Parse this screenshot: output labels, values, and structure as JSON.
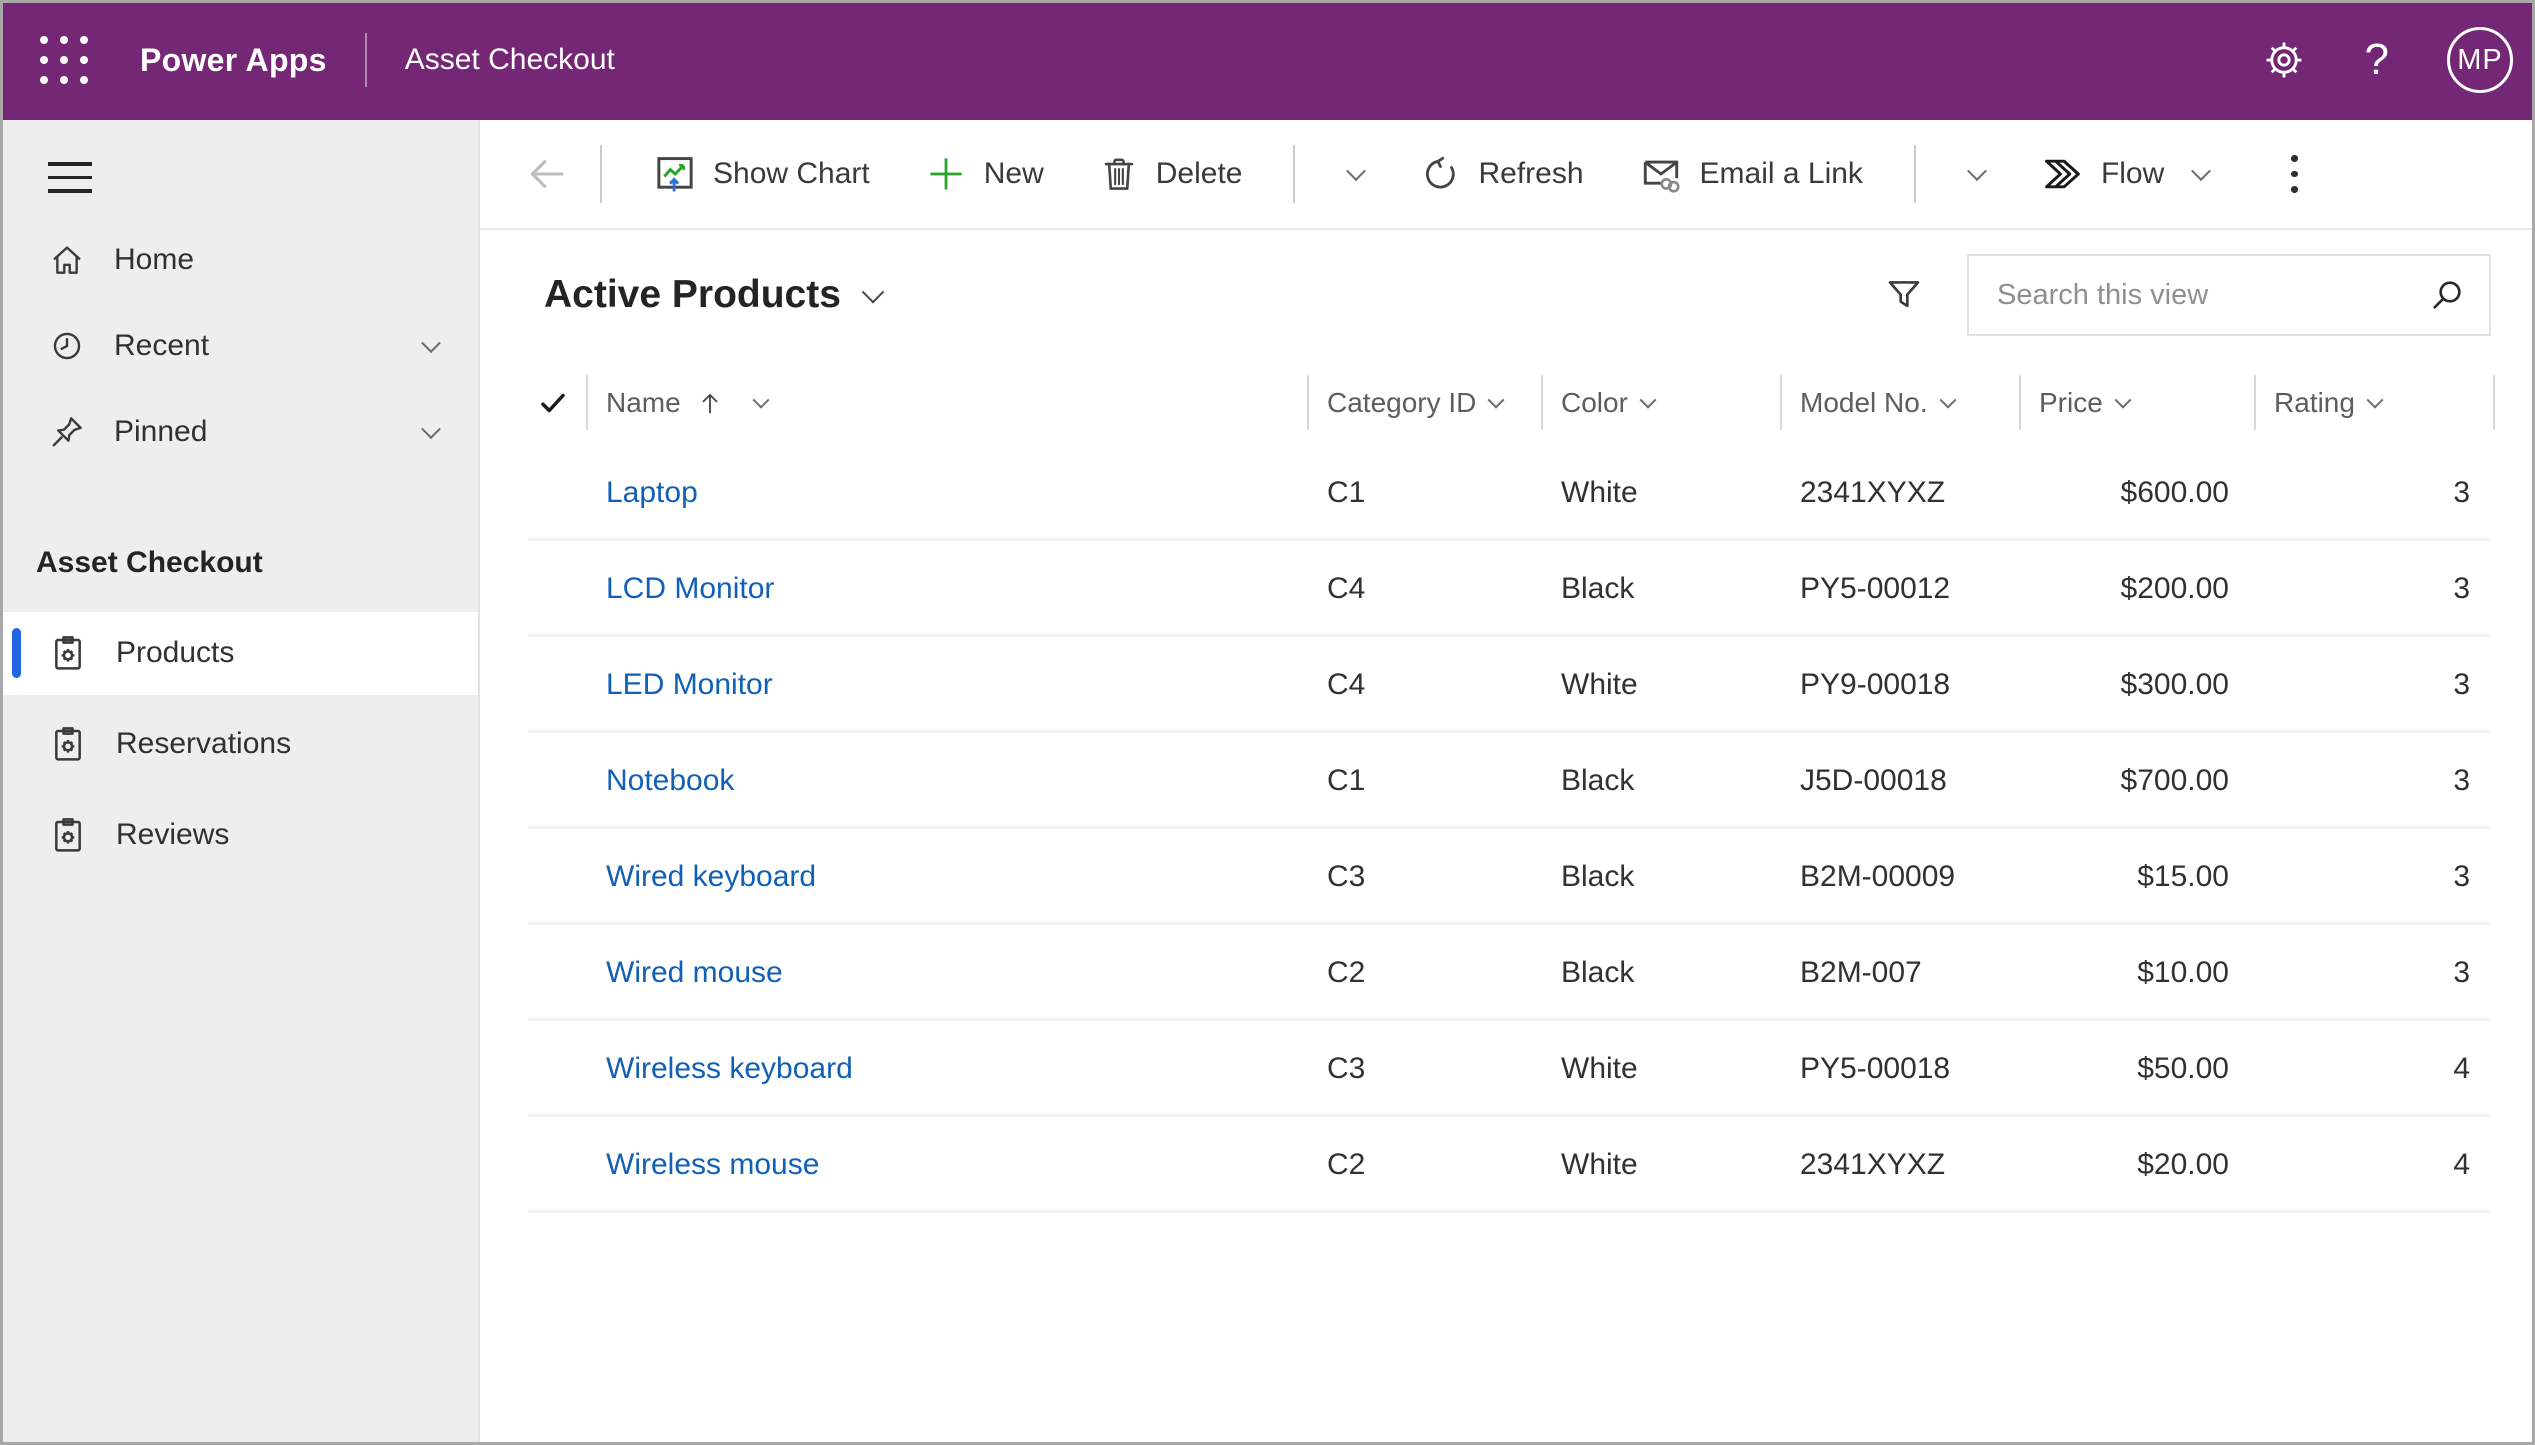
{
  "theme": {
    "header_purple": "#742774",
    "link_blue": "#1160B7",
    "selection_blue": "#2266E3",
    "accent_green": "#28A428",
    "chart_arrow_blue": "#2F6FD6",
    "sidebar_gray": "#EFEEEE"
  },
  "topbar": {
    "product_name": "Power Apps",
    "app_name": "Asset Checkout",
    "help_label": "?",
    "avatar_initials": "MP"
  },
  "sidebar": {
    "nav_items": [
      {
        "label": "Home",
        "expandable": false
      },
      {
        "label": "Recent",
        "expandable": true
      },
      {
        "label": "Pinned",
        "expandable": true
      }
    ],
    "group_label": "Asset Checkout",
    "entity_items": [
      {
        "label": "Products",
        "selected": true
      },
      {
        "label": "Reservations",
        "selected": false
      },
      {
        "label": "Reviews",
        "selected": false
      }
    ]
  },
  "toolbar": {
    "show_chart_label": "Show Chart",
    "new_label": "New",
    "delete_label": "Delete",
    "refresh_label": "Refresh",
    "email_link_label": "Email a Link",
    "flow_label": "Flow"
  },
  "view": {
    "title": "Active Products",
    "search_placeholder": "Search this view"
  },
  "table": {
    "columns": [
      {
        "label": "Name",
        "sort": "ascending"
      },
      {
        "label": "Category ID"
      },
      {
        "label": "Color"
      },
      {
        "label": "Model No."
      },
      {
        "label": "Price"
      },
      {
        "label": "Rating"
      }
    ],
    "rows": [
      {
        "name": "Laptop",
        "category_id": "C1",
        "color": "White",
        "model_no": "2341XYXZ",
        "price": "$600.00",
        "rating": "3"
      },
      {
        "name": "LCD Monitor",
        "category_id": "C4",
        "color": "Black",
        "model_no": "PY5-00012",
        "price": "$200.00",
        "rating": "3"
      },
      {
        "name": "LED Monitor",
        "category_id": "C4",
        "color": "White",
        "model_no": "PY9-00018",
        "price": "$300.00",
        "rating": "3"
      },
      {
        "name": "Notebook",
        "category_id": "C1",
        "color": "Black",
        "model_no": "J5D-00018",
        "price": "$700.00",
        "rating": "3"
      },
      {
        "name": "Wired keyboard",
        "category_id": "C3",
        "color": "Black",
        "model_no": "B2M-00009",
        "price": "$15.00",
        "rating": "3"
      },
      {
        "name": "Wired mouse",
        "category_id": "C2",
        "color": "Black",
        "model_no": "B2M-007",
        "price": "$10.00",
        "rating": "3"
      },
      {
        "name": "Wireless keyboard",
        "category_id": "C3",
        "color": "White",
        "model_no": "PY5-00018",
        "price": "$50.00",
        "rating": "4"
      },
      {
        "name": "Wireless mouse",
        "category_id": "C2",
        "color": "White",
        "model_no": "2341XYXZ",
        "price": "$20.00",
        "rating": "4"
      }
    ]
  }
}
